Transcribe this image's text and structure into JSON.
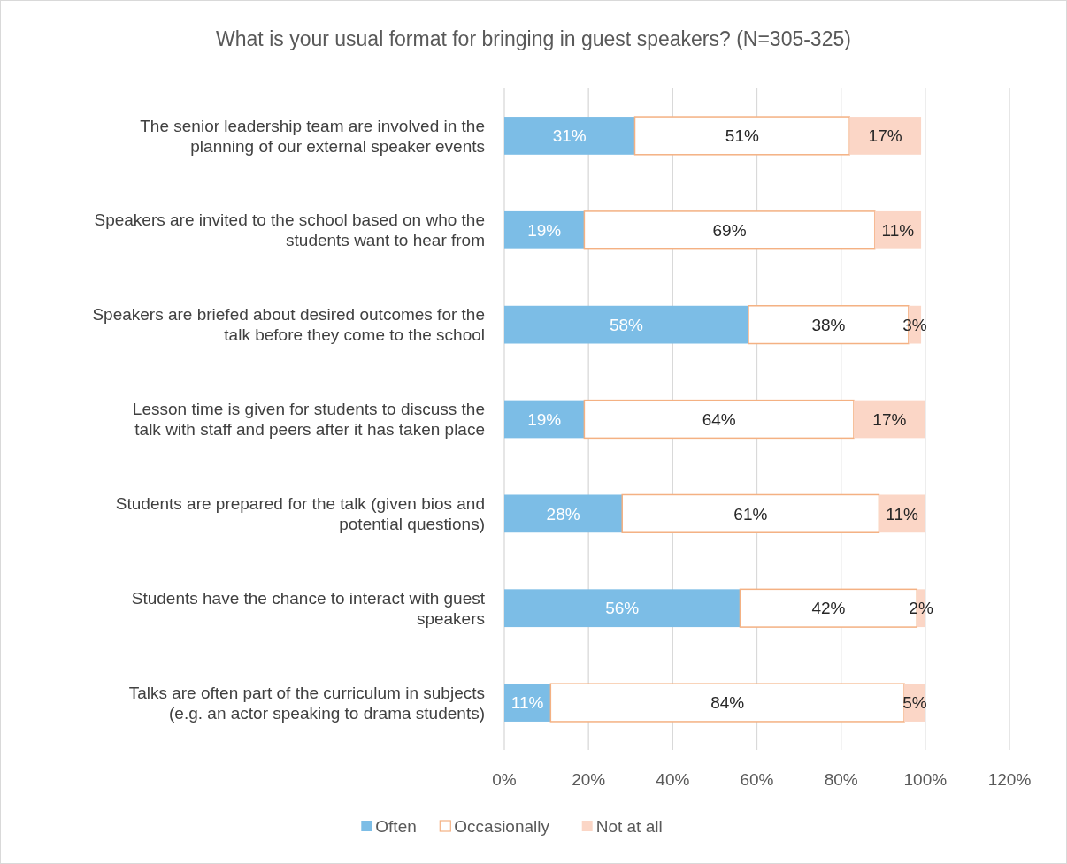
{
  "chart_data": {
    "type": "bar",
    "orientation": "horizontal",
    "stacked": true,
    "title": "What is your usual format for bringing in guest speakers? (N=305-325)",
    "categories": [
      "The senior leadership team are involved in the planning of our external speaker events",
      "Speakers are invited to the school based on who the students want to hear from",
      "Speakers are briefed about desired outcomes for the talk before they come to the school",
      "Lesson time is given for students to discuss the talk with staff and peers after it has taken place",
      "Students are prepared for the talk (given bios and potential questions)",
      "Students have the chance to interact with guest speakers",
      "Talks are often part of the curriculum in subjects (e.g. an actor speaking to drama students)"
    ],
    "series": [
      {
        "name": "Often",
        "color": "#7cbde6",
        "values": [
          31,
          19,
          58,
          19,
          28,
          56,
          11
        ],
        "value_labels": [
          "31%",
          "19%",
          "58%",
          "19%",
          "28%",
          "56%",
          "11%"
        ]
      },
      {
        "name": "Occasionally",
        "color": "#ffffff",
        "values": [
          51,
          69,
          38,
          64,
          61,
          42,
          84
        ],
        "value_labels": [
          "51%",
          "69%",
          "38%",
          "64%",
          "61%",
          "42%",
          "84%"
        ]
      },
      {
        "name": "Not at all",
        "color": "#fbd6c6",
        "values": [
          17,
          11,
          3,
          17,
          11,
          2,
          5
        ],
        "value_labels": [
          "17%",
          "11%",
          "3%",
          "17%",
          "11%",
          "2%",
          "5%"
        ]
      }
    ],
    "xlim": [
      0,
      120
    ],
    "xticks": [
      {
        "value": 0,
        "label": "0%"
      },
      {
        "value": 20,
        "label": "20%"
      },
      {
        "value": 40,
        "label": "40%"
      },
      {
        "value": 60,
        "label": "60%"
      },
      {
        "value": 80,
        "label": "80%"
      },
      {
        "value": 100,
        "label": "100%"
      },
      {
        "value": 120,
        "label": "120%"
      }
    ],
    "grid": "x",
    "legend": "bottom"
  }
}
